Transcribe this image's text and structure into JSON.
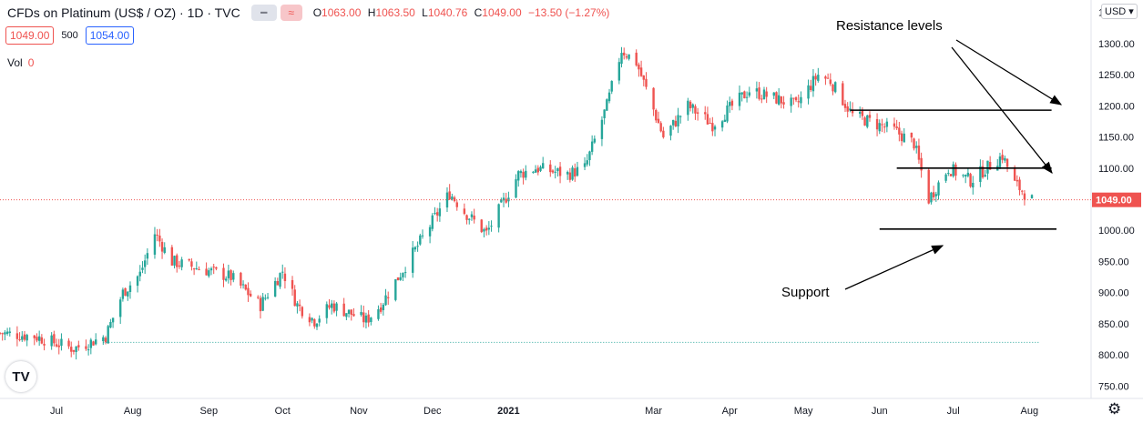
{
  "header": {
    "title": "CFDs on Platinum (US$ / OZ) · 1D · TVC",
    "ohlc": {
      "o_label": "O",
      "o": "1063.00",
      "h_label": "H",
      "h": "1063.50",
      "l_label": "L",
      "l": "1040.76",
      "c_label": "C",
      "c": "1049.00",
      "change": "−13.50 (−1.27%)"
    },
    "sell_price": "1049.00",
    "spread": "500",
    "buy_price": "1054.00",
    "volume_label": "Vol",
    "volume_value": "0",
    "currency": "USD"
  },
  "icons": {
    "logo": "tradingview-logo-icon",
    "settings": "gear-icon",
    "wave": "wave-icon"
  },
  "colors": {
    "up": "#26a69a",
    "down": "#ef5350",
    "price_line": "#ef5350",
    "axis_text": "#131722"
  },
  "chart_data": {
    "type": "candlestick",
    "title": "CFDs on Platinum (US$ / OZ)",
    "ylim": [
      730,
      1370
    ],
    "y_ticks": [
      750,
      800,
      850,
      900,
      950,
      1000,
      1050,
      1100,
      1150,
      1200,
      1250,
      1300,
      1350
    ],
    "y_tick_labels": [
      "750.00",
      "800.00",
      "850.00",
      "900.00",
      "950.00",
      "1000.00",
      "1050.00",
      "1100.00",
      "1150.00",
      "1200.00",
      "1250.00",
      "1300.00",
      "1350.00"
    ],
    "last_price": 1049.0,
    "last_price_label": "1049.00",
    "x_label_list": [
      {
        "label": "Jul",
        "date": "2020-07-01"
      },
      {
        "label": "Aug",
        "date": "2020-08-01"
      },
      {
        "label": "Sep",
        "date": "2020-09-01"
      },
      {
        "label": "Oct",
        "date": "2020-10-01"
      },
      {
        "label": "Nov",
        "date": "2020-11-01"
      },
      {
        "label": "Dec",
        "date": "2020-12-01"
      },
      {
        "label": "2021",
        "date": "2021-01-01",
        "bold": true
      },
      {
        "label": "Mar",
        "date": "2021-03-01"
      },
      {
        "label": "Apr",
        "date": "2021-04-01"
      },
      {
        "label": "May",
        "date": "2021-05-01"
      },
      {
        "label": "Jun",
        "date": "2021-06-01"
      },
      {
        "label": "Jul",
        "date": "2021-07-01"
      },
      {
        "label": "Aug",
        "date": "2021-08-01"
      }
    ],
    "x_start": "2020-06-08",
    "x_end": "2021-08-12",
    "close_path": [
      [
        "2020-06-08",
        835
      ],
      [
        "2020-06-22",
        830
      ],
      [
        "2020-07-08",
        810
      ],
      [
        "2020-07-21",
        830
      ],
      [
        "2020-07-28",
        900
      ],
      [
        "2020-08-04",
        930
      ],
      [
        "2020-08-10",
        995
      ],
      [
        "2020-08-17",
        950
      ],
      [
        "2020-09-01",
        935
      ],
      [
        "2020-09-10",
        925
      ],
      [
        "2020-09-22",
        880
      ],
      [
        "2020-10-01",
        935
      ],
      [
        "2020-10-07",
        880
      ],
      [
        "2020-10-14",
        855
      ],
      [
        "2020-10-21",
        880
      ],
      [
        "2020-11-04",
        855
      ],
      [
        "2020-11-10",
        880
      ],
      [
        "2020-11-25",
        975
      ],
      [
        "2020-12-08",
        1060
      ],
      [
        "2020-12-14",
        1030
      ],
      [
        "2020-12-23",
        995
      ],
      [
        "2021-01-05",
        1090
      ],
      [
        "2021-01-12",
        1100
      ],
      [
        "2021-01-25",
        1090
      ],
      [
        "2021-02-01",
        1100
      ],
      [
        "2021-02-10",
        1200
      ],
      [
        "2021-02-16",
        1290
      ],
      [
        "2021-02-22",
        1270
      ],
      [
        "2021-03-05",
        1150
      ],
      [
        "2021-03-15",
        1200
      ],
      [
        "2021-03-25",
        1170
      ],
      [
        "2021-04-09",
        1225
      ],
      [
        "2021-04-21",
        1210
      ],
      [
        "2021-04-28",
        1200
      ],
      [
        "2021-05-07",
        1250
      ],
      [
        "2021-05-12",
        1240
      ],
      [
        "2021-05-21",
        1185
      ],
      [
        "2021-06-07",
        1160
      ],
      [
        "2021-06-15",
        1140
      ],
      [
        "2021-06-21",
        1050
      ],
      [
        "2021-06-29",
        1100
      ],
      [
        "2021-07-08",
        1080
      ],
      [
        "2021-07-21",
        1120
      ],
      [
        "2021-07-26",
        1075
      ],
      [
        "2021-08-02",
        1049
      ]
    ],
    "annotations": {
      "resistance_label": "Resistance levels",
      "support_label": "Support",
      "resistance_levels": [
        {
          "price": 1193,
          "from": "2021-05-20",
          "to": "2021-08-10"
        },
        {
          "price": 1100,
          "from": "2021-06-08",
          "to": "2021-08-10"
        }
      ],
      "support_levels": [
        {
          "price": 1002,
          "from": "2021-06-01",
          "to": "2021-08-12"
        }
      ],
      "dotted_level": {
        "price": 820,
        "from": "2020-07-20",
        "to": "2021-08-05"
      }
    }
  }
}
